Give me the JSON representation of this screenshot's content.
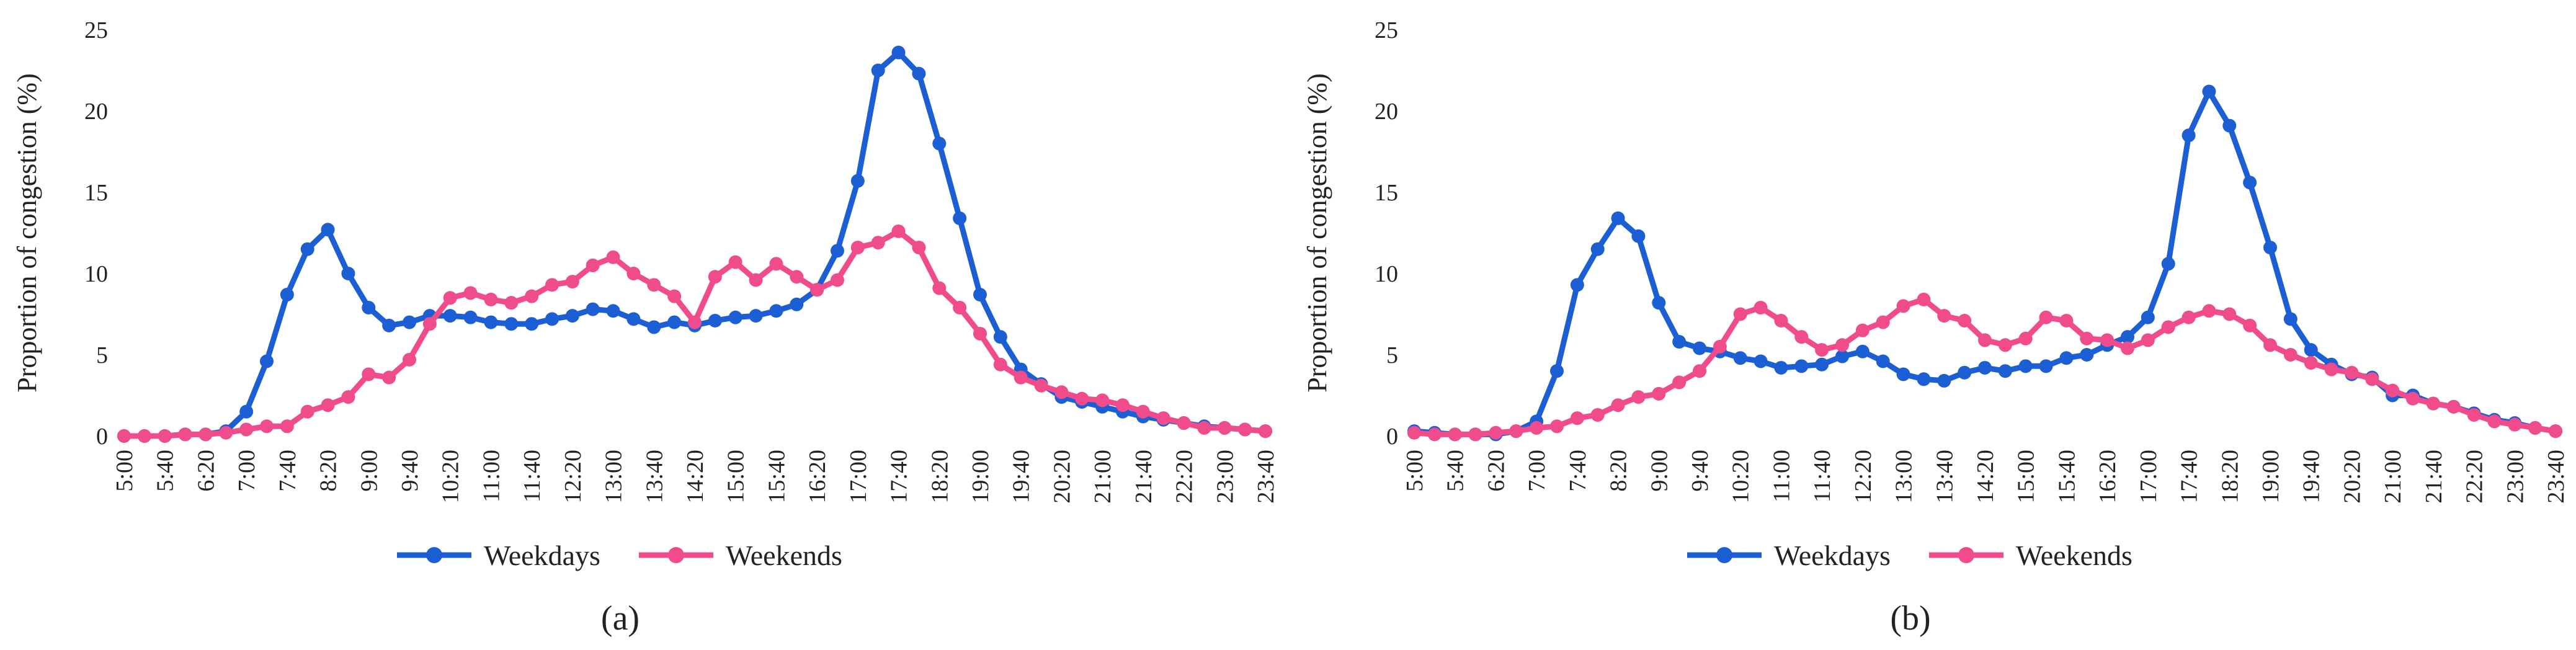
{
  "chart_data": [
    {
      "type": "line",
      "label": "(a)",
      "ylabel": "Proportion of congestion (%)",
      "categories": [
        "5:00",
        null,
        "5:40",
        null,
        "6:20",
        null,
        "7:00",
        null,
        "7:40",
        null,
        "8:20",
        null,
        "9:00",
        null,
        "9:40",
        null,
        "10:20",
        null,
        "11:00",
        null,
        "11:40",
        null,
        "12:20",
        null,
        "13:00",
        null,
        "13:40",
        null,
        "14:20",
        null,
        "15:00",
        null,
        "15:40",
        null,
        "16:20",
        null,
        "17:00",
        null,
        "17:40",
        null,
        "18:20",
        null,
        "19:00",
        null,
        "19:40",
        null,
        "20:20",
        null,
        "21:00",
        null,
        "21:40",
        null,
        "22:20",
        null,
        "23:00",
        null,
        "23:40"
      ],
      "ylim": [
        0,
        25
      ],
      "yticks": [
        0,
        5,
        10,
        15,
        20,
        25
      ],
      "series": [
        {
          "name": "Weekdays",
          "color": "#1c5fd4",
          "values": [
            0,
            0,
            0,
            0.1,
            0.1,
            0.3,
            1.5,
            4.6,
            8.7,
            11.5,
            12.7,
            10.0,
            7.9,
            6.8,
            7.0,
            7.4,
            7.4,
            7.3,
            7.0,
            6.9,
            6.9,
            7.2,
            7.4,
            7.8,
            7.7,
            7.2,
            6.7,
            7.0,
            6.8,
            7.1,
            7.3,
            7.4,
            7.7,
            8.1,
            9.0,
            11.4,
            15.7,
            22.5,
            23.6,
            22.3,
            18.0,
            13.4,
            8.7,
            6.1,
            4.1,
            3.2,
            2.4,
            2.1,
            1.8,
            1.5,
            1.2,
            1.0,
            0.8,
            0.6,
            0.5,
            0.4,
            0.3
          ]
        },
        {
          "name": "Weekends",
          "color": "#f04c8c",
          "values": [
            0,
            0,
            0,
            0.1,
            0.1,
            0.2,
            0.4,
            0.6,
            0.6,
            1.5,
            1.9,
            2.4,
            3.8,
            3.6,
            4.7,
            6.9,
            8.5,
            8.8,
            8.4,
            8.2,
            8.6,
            9.3,
            9.5,
            10.5,
            11.0,
            10.0,
            9.3,
            8.6,
            7.0,
            9.8,
            10.7,
            9.6,
            10.6,
            9.8,
            9.0,
            9.6,
            11.6,
            11.9,
            12.6,
            11.6,
            9.1,
            7.9,
            6.3,
            4.4,
            3.6,
            3.1,
            2.7,
            2.3,
            2.2,
            1.9,
            1.5,
            1.1,
            0.8,
            0.5,
            0.5,
            0.4,
            0.3
          ]
        }
      ]
    },
    {
      "type": "line",
      "label": "(b)",
      "ylabel": "Proportion of congestion (%)",
      "categories": [
        "5:00",
        null,
        "5:40",
        null,
        "6:20",
        null,
        "7:00",
        null,
        "7:40",
        null,
        "8:20",
        null,
        "9:00",
        null,
        "9:40",
        null,
        "10:20",
        null,
        "11:00",
        null,
        "11:40",
        null,
        "12:20",
        null,
        "13:00",
        null,
        "13:40",
        null,
        "14:20",
        null,
        "15:00",
        null,
        "15:40",
        null,
        "16:20",
        null,
        "17:00",
        null,
        "17:40",
        null,
        "18:20",
        null,
        "19:00",
        null,
        "19:40",
        null,
        "20:20",
        null,
        "21:00",
        null,
        "21:40",
        null,
        "22:20",
        null,
        "23:00",
        null,
        "23:40"
      ],
      "ylim": [
        0,
        25
      ],
      "yticks": [
        0,
        5,
        10,
        15,
        20,
        25
      ],
      "series": [
        {
          "name": "Weekdays",
          "color": "#1c5fd4",
          "values": [
            0.3,
            0.2,
            0.1,
            0.1,
            0.1,
            0.3,
            0.9,
            4.0,
            9.3,
            11.5,
            13.4,
            12.3,
            8.2,
            5.8,
            5.4,
            5.2,
            4.8,
            4.6,
            4.2,
            4.3,
            4.4,
            4.9,
            5.2,
            4.6,
            3.8,
            3.5,
            3.4,
            3.9,
            4.2,
            4.0,
            4.3,
            4.3,
            4.8,
            5.0,
            5.6,
            6.1,
            7.3,
            10.6,
            18.5,
            21.2,
            19.1,
            15.6,
            11.6,
            7.2,
            5.3,
            4.4,
            3.8,
            3.6,
            2.5,
            2.5,
            2.0,
            1.8,
            1.4,
            1.0,
            0.8,
            0.5,
            0.3
          ]
        },
        {
          "name": "Weekends",
          "color": "#f04c8c",
          "values": [
            0.2,
            0.1,
            0.1,
            0.1,
            0.2,
            0.3,
            0.5,
            0.6,
            1.1,
            1.3,
            1.9,
            2.4,
            2.6,
            3.3,
            4.0,
            5.5,
            7.5,
            7.9,
            7.1,
            6.1,
            5.3,
            5.6,
            6.5,
            7.0,
            8.0,
            8.4,
            7.4,
            7.1,
            5.9,
            5.6,
            6.0,
            7.3,
            7.1,
            6.0,
            5.9,
            5.4,
            5.9,
            6.7,
            7.3,
            7.7,
            7.5,
            6.8,
            5.6,
            5.0,
            4.5,
            4.1,
            3.9,
            3.5,
            2.8,
            2.3,
            2.0,
            1.8,
            1.3,
            0.9,
            0.7,
            0.5,
            0.3
          ]
        }
      ]
    }
  ]
}
